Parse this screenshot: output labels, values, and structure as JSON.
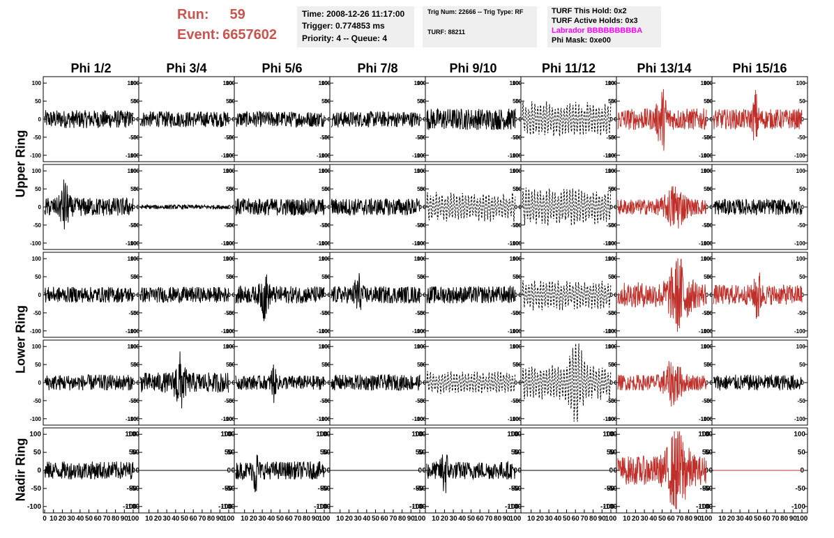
{
  "header": {
    "run_label": "Run:",
    "run_value": "59",
    "event_label": "Event:",
    "event_value": "6657602",
    "time": "Time: 2008-12-26 11:17:00",
    "trigger": "Trigger: 0.774853 ms",
    "priority": "Priority: 4 -- Queue: 4",
    "trig_num": "Trig Num: 22666 -- Trig Type: RF",
    "turf": "TURF: 88211",
    "turf_this_hold": "TURF This Hold: 0x2",
    "turf_active_holds": "TURF Active Holds: 0x3",
    "labrador": "Labrador BBBBBBBBBA",
    "phi_mask": "Phi Mask: 0xe00"
  },
  "colors": {
    "run_text": "#c85450",
    "labrador_text": "#ff00ff",
    "info_box_bg": "#efefef",
    "trace_normal": "#000000",
    "trace_triggered": "#c0302a"
  },
  "chart_data": {
    "type": "line",
    "description": "ANITA event display: 5 ring rows x 8 phi-sector columns of waveform panels",
    "columns": [
      "Phi 1/2",
      "Phi 3/4",
      "Phi 5/6",
      "Phi 7/8",
      "Phi 9/10",
      "Phi 11/12",
      "Phi 13/14",
      "Phi 15/16"
    ],
    "ring_labels": [
      {
        "label": "Upper Ring",
        "rows": [
          0,
          1
        ]
      },
      {
        "label": "Lower Ring",
        "rows": [
          2,
          3
        ]
      },
      {
        "label": "Nadir Ring",
        "rows": [
          4
        ]
      }
    ],
    "xlim": [
      0,
      100
    ],
    "ylim": [
      -110,
      110
    ],
    "y_ticks": [
      -100,
      -50,
      0,
      50,
      100
    ],
    "x_tick_labels": [
      "0",
      "10",
      "20",
      "30",
      "40",
      "50",
      "60",
      "70",
      "80",
      "90",
      "100"
    ],
    "panels": [
      [
        {
          "style": "solid",
          "color": "black",
          "amp": 25,
          "burst": null
        },
        {
          "style": "solid",
          "color": "black",
          "amp": 22,
          "burst": null
        },
        {
          "style": "solid",
          "color": "black",
          "amp": 22,
          "burst": null
        },
        {
          "style": "solid",
          "color": "black",
          "amp": 22,
          "burst": null
        },
        {
          "style": "solid",
          "color": "black",
          "amp": 30,
          "burst": null
        },
        {
          "style": "dashed",
          "color": "black",
          "amp": 45,
          "burst": null
        },
        {
          "style": "solid",
          "color": "red",
          "amp": 30,
          "burst": [
            35,
            65
          ]
        },
        {
          "style": "solid",
          "color": "red",
          "amp": 28,
          "burst": [
            40,
            55
          ]
        }
      ],
      [
        {
          "style": "solid",
          "color": "black",
          "amp": 26,
          "burst": [
            10,
            35
          ]
        },
        {
          "style": "solid",
          "color": "black",
          "amp": 6,
          "burst": null
        },
        {
          "style": "solid",
          "color": "black",
          "amp": 24,
          "burst": null
        },
        {
          "style": "solid",
          "color": "black",
          "amp": 24,
          "burst": null
        },
        {
          "style": "dashed",
          "color": "black",
          "amp": 38,
          "burst": null
        },
        {
          "style": "dashed",
          "color": "black",
          "amp": 50,
          "burst": null
        },
        {
          "style": "solid",
          "color": "red",
          "amp": 22,
          "burst": [
            35,
            95
          ]
        },
        {
          "style": "solid",
          "color": "black",
          "amp": 22,
          "burst": null
        }
      ],
      [
        {
          "style": "solid",
          "color": "black",
          "amp": 22,
          "burst": null
        },
        {
          "style": "solid",
          "color": "black",
          "amp": 22,
          "burst": null
        },
        {
          "style": "solid",
          "color": "black",
          "amp": 24,
          "burst": [
            20,
            45
          ]
        },
        {
          "style": "solid",
          "color": "black",
          "amp": 24,
          "burst": [
            20,
            40
          ]
        },
        {
          "style": "solid",
          "color": "black",
          "amp": 24,
          "burst": null
        },
        {
          "style": "dashed",
          "color": "black",
          "amp": 40,
          "burst": null
        },
        {
          "style": "solid",
          "color": "red",
          "amp": 35,
          "burst": [
            38,
            100
          ]
        },
        {
          "style": "solid",
          "color": "red",
          "amp": 28,
          "burst": [
            40,
            60
          ]
        }
      ],
      [
        {
          "style": "solid",
          "color": "black",
          "amp": 22,
          "burst": null
        },
        {
          "style": "solid",
          "color": "black",
          "amp": 28,
          "burst": [
            30,
            60
          ]
        },
        {
          "style": "solid",
          "color": "black",
          "amp": 20,
          "burst": [
            35,
            50
          ]
        },
        {
          "style": "solid",
          "color": "black",
          "amp": 22,
          "burst": null
        },
        {
          "style": "dashed",
          "color": "black",
          "amp": 30,
          "burst": null
        },
        {
          "style": "dashed",
          "color": "black",
          "amp": 45,
          "burst": [
            40,
            80
          ]
        },
        {
          "style": "solid",
          "color": "red",
          "amp": 22,
          "burst": [
            35,
            90
          ]
        },
        {
          "style": "solid",
          "color": "black",
          "amp": 22,
          "burst": null
        }
      ],
      [
        {
          "style": "solid",
          "color": "black",
          "amp": 25,
          "burst": null
        },
        {
          "style": "flat",
          "color": "black",
          "amp": 0,
          "burst": null
        },
        {
          "style": "solid",
          "color": "black",
          "amp": 25,
          "burst": [
            15,
            30
          ]
        },
        {
          "style": "flat",
          "color": "black",
          "amp": 0,
          "burst": null
        },
        {
          "style": "solid",
          "color": "black",
          "amp": 25,
          "burst": [
            10,
            30
          ]
        },
        {
          "style": "flat",
          "color": "black",
          "amp": 0,
          "burst": null
        },
        {
          "style": "solid",
          "color": "red",
          "amp": 40,
          "burst": [
            35,
            100
          ]
        },
        {
          "style": "flat",
          "color": "red",
          "amp": 0,
          "burst": null
        }
      ]
    ]
  }
}
